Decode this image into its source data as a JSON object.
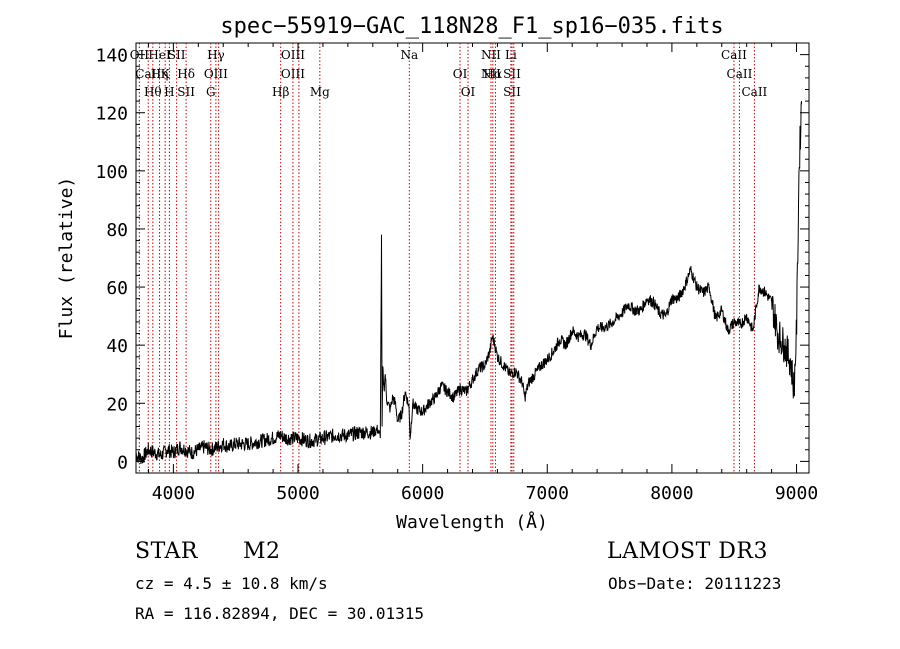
{
  "chart_data": {
    "type": "line",
    "title": "spec−55919−GAC_118N28_F1_sp16−035.fits",
    "xlabel": "Wavelength (Å)",
    "ylabel": "Flux (relative)",
    "xlim": [
      3700,
      9100
    ],
    "ylim": [
      -4,
      144
    ],
    "xticks": [
      4000,
      5000,
      6000,
      7000,
      8000,
      9000
    ],
    "yticks": [
      0,
      20,
      40,
      60,
      80,
      100,
      120,
      140
    ],
    "x": [
      3700,
      3750,
      3800,
      3850,
      3900,
      3950,
      4000,
      4050,
      4100,
      4150,
      4200,
      4250,
      4300,
      4350,
      4400,
      4450,
      4500,
      4600,
      4700,
      4800,
      4860,
      4900,
      5000,
      5100,
      5200,
      5300,
      5400,
      5500,
      5600,
      5640,
      5660,
      5670,
      5675,
      5680,
      5690,
      5700,
      5710,
      5720,
      5740,
      5760,
      5780,
      5800,
      5830,
      5860,
      5890,
      5900,
      5920,
      5950,
      6000,
      6050,
      6100,
      6150,
      6200,
      6250,
      6300,
      6350,
      6400,
      6450,
      6500,
      6540,
      6560,
      6580,
      6600,
      6650,
      6700,
      6750,
      6800,
      6820,
      6850,
      6900,
      6950,
      7000,
      7050,
      7100,
      7150,
      7200,
      7250,
      7300,
      7350,
      7400,
      7450,
      7500,
      7550,
      7600,
      7650,
      7700,
      7750,
      7800,
      7850,
      7900,
      7950,
      8000,
      8050,
      8100,
      8150,
      8200,
      8250,
      8300,
      8350,
      8400,
      8450,
      8500,
      8550,
      8600,
      8650,
      8700,
      8750,
      8800,
      8850,
      8900,
      8950,
      8980,
      9000,
      9020,
      9040
    ],
    "values": [
      2,
      1,
      4,
      3,
      2,
      4,
      3,
      5,
      4,
      3,
      4,
      5,
      4,
      5,
      6,
      5,
      6,
      6,
      7,
      8,
      9,
      8,
      8,
      7,
      8,
      9,
      9,
      10,
      10,
      11,
      8,
      78,
      12,
      32,
      25,
      30,
      22,
      20,
      18,
      22,
      20,
      14,
      16,
      24,
      19,
      8,
      20,
      18,
      17,
      20,
      22,
      26,
      24,
      22,
      25,
      24,
      28,
      32,
      33,
      38,
      43,
      40,
      36,
      33,
      30,
      31,
      27,
      22,
      27,
      30,
      33,
      35,
      38,
      42,
      40,
      45,
      43,
      44,
      40,
      46,
      46,
      47,
      49,
      51,
      54,
      52,
      52,
      56,
      55,
      51,
      50,
      56,
      56,
      60,
      66,
      60,
      58,
      60,
      49,
      52,
      45,
      48,
      47,
      50,
      45,
      60,
      58,
      55,
      44,
      40,
      35,
      25,
      45,
      100,
      124
    ],
    "series_name": "flux",
    "lines": [
      {
        "wave": 3727,
        "labels": [
          "OII"
        ]
      },
      {
        "wave": 3798,
        "labels": [
          "CaII"
        ]
      },
      {
        "wave": 3835,
        "labels": [
          "Hθ"
        ]
      },
      {
        "wave": 3889,
        "labels": [
          "HeI",
          "Hη"
        ]
      },
      {
        "wave": 3934,
        "labels": [
          "K"
        ]
      },
      {
        "wave": 3968,
        "labels": [
          "H"
        ]
      },
      {
        "wave": 4026,
        "labels": [
          "SII"
        ]
      },
      {
        "wave": 4102,
        "labels": [
          "Hδ",
          "SII"
        ]
      },
      {
        "wave": 4300,
        "labels": [
          "G"
        ]
      },
      {
        "wave": 4341,
        "labels": [
          "Hγ",
          "OIII"
        ]
      },
      {
        "wave": 4363,
        "labels": []
      },
      {
        "wave": 4861,
        "labels": [
          "Hβ"
        ]
      },
      {
        "wave": 4959,
        "labels": [
          "OIII",
          "OIII"
        ]
      },
      {
        "wave": 5007,
        "labels": []
      },
      {
        "wave": 5175,
        "labels": [
          "Mg"
        ]
      },
      {
        "wave": 5893,
        "labels": [
          "Na"
        ]
      },
      {
        "wave": 6300,
        "labels": [
          "OI"
        ]
      },
      {
        "wave": 6364,
        "labels": [
          "OI"
        ]
      },
      {
        "wave": 6548,
        "labels": [
          "NII",
          "NII"
        ]
      },
      {
        "wave": 6563,
        "labels": [
          "Hα"
        ]
      },
      {
        "wave": 6584,
        "labels": []
      },
      {
        "wave": 6708,
        "labels": [
          "Li"
        ]
      },
      {
        "wave": 6717,
        "labels": [
          "SII",
          "SII"
        ]
      },
      {
        "wave": 6731,
        "labels": []
      },
      {
        "wave": 8498,
        "labels": [
          "CaII"
        ]
      },
      {
        "wave": 8542,
        "labels": [
          "CaII"
        ]
      },
      {
        "wave": 8662,
        "labels": [
          "CaII"
        ]
      }
    ],
    "line_color": "#cc0000"
  },
  "info": {
    "class": "STAR",
    "subclass": "M2",
    "survey": "LAMOST DR3",
    "cz": "cz = 4.5 ± 10.8 km/s",
    "obsdate": "Obs−Date: 20111223",
    "radec": "RA = 116.82894, DEC =  30.01315"
  }
}
